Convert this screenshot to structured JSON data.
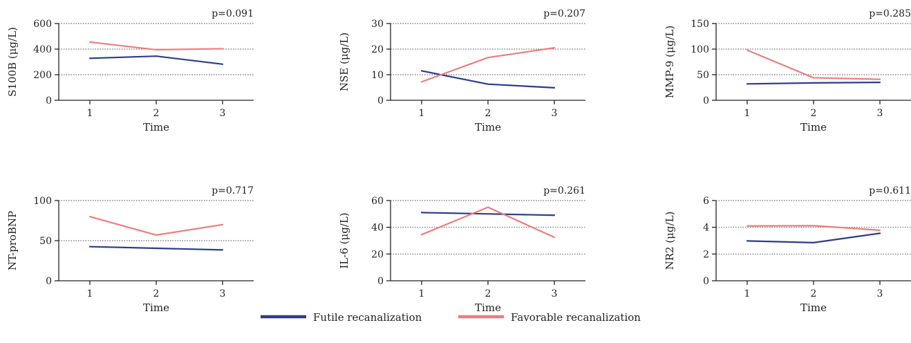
{
  "colors": {
    "futile": "#2b3b8f",
    "favorable": "#f07c7c",
    "axis": "#222222",
    "grid": "#444444"
  },
  "legend": {
    "futile_label": "Futile recanalization",
    "favorable_label": "Favorable recanalization"
  },
  "chart_data": [
    {
      "type": "line",
      "ylabel": "S100B (μg/L)",
      "xlabel": "Time",
      "pvalue": "p=0.091",
      "x": [
        1,
        2,
        3
      ],
      "ylim": [
        0,
        600
      ],
      "yticks": [
        0,
        200,
        400,
        600
      ],
      "grid": "dotted-y",
      "series": [
        {
          "name": "Futile recanalization",
          "values": [
            328,
            345,
            282
          ]
        },
        {
          "name": "Favorable recanalization",
          "values": [
            455,
            395,
            403
          ]
        }
      ]
    },
    {
      "type": "line",
      "ylabel": "NSE (μg/L)",
      "xlabel": "Time",
      "pvalue": "p=0.207",
      "x": [
        1,
        2,
        3
      ],
      "ylim": [
        0,
        30
      ],
      "yticks": [
        0,
        10,
        20,
        30
      ],
      "grid": "dotted-y",
      "series": [
        {
          "name": "Futile recanalization",
          "values": [
            11.5,
            6.3,
            4.9
          ]
        },
        {
          "name": "Favorable recanalization",
          "values": [
            7.2,
            16.7,
            20.5
          ]
        }
      ]
    },
    {
      "type": "line",
      "ylabel": "MMP-9 (μg/L)",
      "xlabel": "Time",
      "pvalue": "p=0.285",
      "x": [
        1,
        2,
        3
      ],
      "ylim": [
        0,
        150
      ],
      "yticks": [
        0,
        50,
        100,
        150
      ],
      "grid": "dotted-y",
      "series": [
        {
          "name": "Futile recanalization",
          "values": [
            32,
            34,
            35
          ]
        },
        {
          "name": "Favorable recanalization",
          "values": [
            98,
            44,
            41
          ]
        }
      ]
    },
    {
      "type": "line",
      "ylabel": "NT-proBNP",
      "xlabel": "Time",
      "pvalue": "p=0.717",
      "x": [
        1,
        2,
        3
      ],
      "ylim": [
        0,
        100
      ],
      "yticks": [
        0,
        50,
        100
      ],
      "grid": "dotted-y",
      "series": [
        {
          "name": "Futile recanalization",
          "values": [
            42.5,
            40.5,
            38.5
          ]
        },
        {
          "name": "Favorable recanalization",
          "values": [
            80,
            57,
            70
          ]
        }
      ]
    },
    {
      "type": "line",
      "ylabel": "IL-6 (μg/L)",
      "xlabel": "Time",
      "pvalue": "p=0.261",
      "x": [
        1,
        2,
        3
      ],
      "ylim": [
        0,
        60
      ],
      "yticks": [
        0,
        20,
        40,
        60
      ],
      "grid": "dotted-y",
      "series": [
        {
          "name": "Futile recanalization",
          "values": [
            51,
            50,
            49
          ]
        },
        {
          "name": "Favorable recanalization",
          "values": [
            34.5,
            55,
            32.5
          ]
        }
      ]
    },
    {
      "type": "line",
      "ylabel": "NR2 (μg/L)",
      "xlabel": "Time",
      "pvalue": "p=0.611",
      "x": [
        1,
        2,
        3
      ],
      "ylim": [
        0,
        6
      ],
      "yticks": [
        0,
        2,
        4,
        6
      ],
      "grid": "dotted-y",
      "series": [
        {
          "name": "Futile recanalization",
          "values": [
            2.98,
            2.85,
            3.55
          ]
        },
        {
          "name": "Favorable recanalization",
          "values": [
            4.1,
            4.12,
            3.78
          ]
        }
      ]
    }
  ]
}
